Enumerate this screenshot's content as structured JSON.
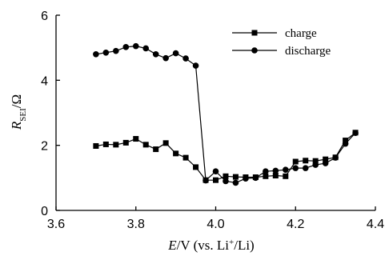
{
  "chart_data": {
    "type": "line",
    "xlim": [
      3.6,
      4.4
    ],
    "ylim": [
      0,
      6
    ],
    "x_ticks": [
      3.6,
      3.8,
      4.0,
      4.2,
      4.4
    ],
    "y_ticks": [
      0,
      2,
      4,
      6
    ],
    "x_tick_labels": [
      "3.6",
      "3.8",
      "4.0",
      "4.2",
      "4.4"
    ],
    "y_tick_labels": [
      "0",
      "2",
      "4",
      "6"
    ],
    "xlabel": {
      "var": "E",
      "unit": "/V (vs. Li",
      "sup": "+",
      "tail": "/Li)"
    },
    "ylabel": {
      "var": "R",
      "sub": "SEI",
      "unit": "/Ω"
    },
    "grid": false,
    "legend_position": "top-right",
    "series": [
      {
        "name": "charge",
        "marker": "square",
        "color": "#000000",
        "points": [
          [
            3.7,
            1.98
          ],
          [
            3.725,
            2.03
          ],
          [
            3.75,
            2.02
          ],
          [
            3.775,
            2.08
          ],
          [
            3.8,
            2.2
          ],
          [
            3.825,
            2.02
          ],
          [
            3.85,
            1.88
          ],
          [
            3.875,
            2.07
          ],
          [
            3.9,
            1.75
          ],
          [
            3.925,
            1.62
          ],
          [
            3.95,
            1.33
          ],
          [
            3.975,
            0.93
          ],
          [
            4.0,
            0.93
          ],
          [
            4.025,
            1.05
          ],
          [
            4.05,
            1.03
          ],
          [
            4.075,
            1.02
          ],
          [
            4.1,
            1.02
          ],
          [
            4.125,
            1.05
          ],
          [
            4.15,
            1.07
          ],
          [
            4.175,
            1.05
          ],
          [
            4.2,
            1.5
          ],
          [
            4.225,
            1.53
          ],
          [
            4.25,
            1.52
          ],
          [
            4.275,
            1.57
          ],
          [
            4.3,
            1.63
          ],
          [
            4.325,
            2.15
          ],
          [
            4.35,
            2.39
          ]
        ]
      },
      {
        "name": "discharge",
        "marker": "circle",
        "color": "#000000",
        "points": [
          [
            3.7,
            4.8
          ],
          [
            3.725,
            4.85
          ],
          [
            3.75,
            4.9
          ],
          [
            3.775,
            5.02
          ],
          [
            3.8,
            5.05
          ],
          [
            3.825,
            4.98
          ],
          [
            3.85,
            4.8
          ],
          [
            3.875,
            4.68
          ],
          [
            3.9,
            4.83
          ],
          [
            3.925,
            4.67
          ],
          [
            3.95,
            4.45
          ],
          [
            3.975,
            0.92
          ],
          [
            4.0,
            1.2
          ],
          [
            4.025,
            0.9
          ],
          [
            4.05,
            0.85
          ],
          [
            4.075,
            0.98
          ],
          [
            4.1,
            1.0
          ],
          [
            4.125,
            1.2
          ],
          [
            4.15,
            1.22
          ],
          [
            4.175,
            1.25
          ],
          [
            4.2,
            1.3
          ],
          [
            4.225,
            1.3
          ],
          [
            4.25,
            1.4
          ],
          [
            4.275,
            1.45
          ],
          [
            4.3,
            1.62
          ],
          [
            4.325,
            2.05
          ],
          [
            4.35,
            2.38
          ]
        ]
      }
    ]
  }
}
